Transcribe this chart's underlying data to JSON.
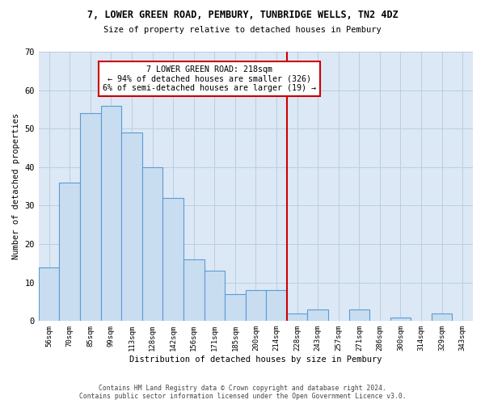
{
  "title": "7, LOWER GREEN ROAD, PEMBURY, TUNBRIDGE WELLS, TN2 4DZ",
  "subtitle": "Size of property relative to detached houses in Pembury",
  "xlabel": "Distribution of detached houses by size in Pembury",
  "ylabel": "Number of detached properties",
  "bar_labels": [
    "56sqm",
    "70sqm",
    "85sqm",
    "99sqm",
    "113sqm",
    "128sqm",
    "142sqm",
    "156sqm",
    "171sqm",
    "185sqm",
    "200sqm",
    "214sqm",
    "228sqm",
    "243sqm",
    "257sqm",
    "271sqm",
    "286sqm",
    "300sqm",
    "314sqm",
    "329sqm",
    "343sqm"
  ],
  "bar_values": [
    14,
    36,
    54,
    56,
    49,
    40,
    32,
    16,
    13,
    7,
    8,
    8,
    2,
    3,
    0,
    3,
    0,
    1,
    0,
    2,
    0
  ],
  "bar_color": "#c9ddf0",
  "bar_edge_color": "#5b9bd5",
  "vline_x": 11.5,
  "vline_color": "#cc0000",
  "annotation_text": "7 LOWER GREEN ROAD: 218sqm\n← 94% of detached houses are smaller (326)\n6% of semi-detached houses are larger (19) →",
  "annotation_box_color": "#cc0000",
  "ylim": [
    0,
    70
  ],
  "yticks": [
    0,
    10,
    20,
    30,
    40,
    50,
    60,
    70
  ],
  "grid_color": "#b8cfe0",
  "background_color": "#dce8f5",
  "footer_line1": "Contains HM Land Registry data © Crown copyright and database right 2024.",
  "footer_line2": "Contains public sector information licensed under the Open Government Licence v3.0."
}
